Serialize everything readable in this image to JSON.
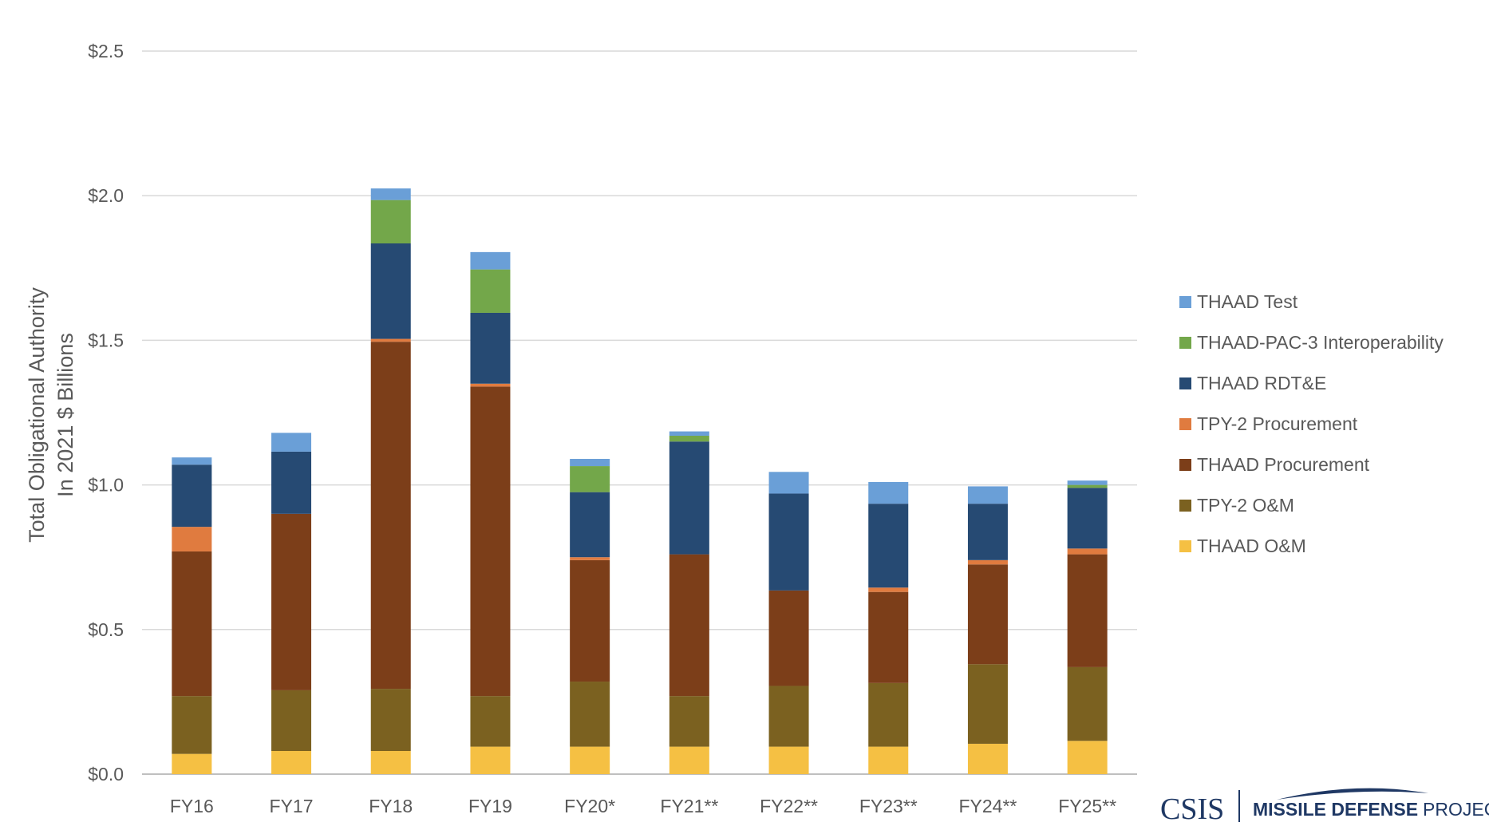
{
  "chart_data": {
    "type": "bar",
    "stacked": true,
    "title": "",
    "ylabel": [
      "Total Obligational Authority",
      "In 2021 $ Billions"
    ],
    "xlabel": "",
    "ylim": [
      0,
      2.5
    ],
    "yticks": [
      0,
      0.5,
      1.0,
      1.5,
      2.0,
      2.5
    ],
    "ytick_labels": [
      "$0.0",
      "$0.5",
      "$1.0",
      "$1.5",
      "$2.0",
      "$2.5"
    ],
    "grid": true,
    "legend_position": "right",
    "categories": [
      "FY16",
      "FY17",
      "FY18",
      "FY19",
      "FY20*",
      "FY21**",
      "FY22**",
      "FY23**",
      "FY24**",
      "FY25**"
    ],
    "series": [
      {
        "name": "THAAD O&M",
        "color": "#f5c043",
        "values": [
          0.07,
          0.08,
          0.08,
          0.095,
          0.095,
          0.095,
          0.095,
          0.095,
          0.105,
          0.115
        ]
      },
      {
        "name": "TPY-2 O&M",
        "color": "#7b6120",
        "values": [
          0.2,
          0.21,
          0.215,
          0.175,
          0.225,
          0.175,
          0.21,
          0.22,
          0.275,
          0.255
        ]
      },
      {
        "name": "THAAD Procurement",
        "color": "#7c3e19",
        "values": [
          0.5,
          0.61,
          1.2,
          1.07,
          0.42,
          0.49,
          0.33,
          0.315,
          0.345,
          0.39
        ]
      },
      {
        "name": "TPY-2 Procurement",
        "color": "#e07b3f",
        "values": [
          0.085,
          0.0,
          0.01,
          0.01,
          0.01,
          0.0,
          0.0,
          0.015,
          0.015,
          0.02
        ]
      },
      {
        "name": "THAAD RDT&E",
        "color": "#264a73",
        "values": [
          0.215,
          0.215,
          0.33,
          0.245,
          0.225,
          0.39,
          0.335,
          0.29,
          0.195,
          0.21
        ]
      },
      {
        "name": "THAAD-PAC-3 Interoperability",
        "color": "#73a74a",
        "values": [
          0.0,
          0.0,
          0.15,
          0.15,
          0.09,
          0.02,
          0.0,
          0.0,
          0.0,
          0.01
        ]
      },
      {
        "name": "THAAD Test",
        "color": "#6a9fd7",
        "values": [
          0.025,
          0.065,
          0.04,
          0.06,
          0.025,
          0.015,
          0.075,
          0.075,
          0.06,
          0.015
        ]
      }
    ]
  },
  "branding": {
    "org": "CSIS",
    "project_bold": "MISSILE DEFENSE",
    "project_regular": "PROJECT"
  }
}
